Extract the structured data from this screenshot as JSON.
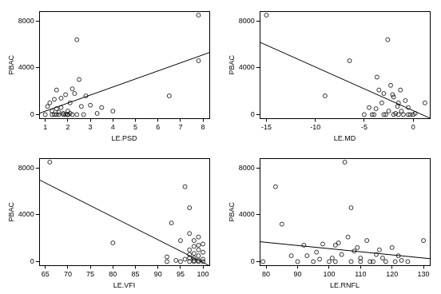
{
  "chart_data": [
    {
      "type": "scatter",
      "x_label": "LE.PSD",
      "y_label": "PBAC",
      "color": "#000000",
      "marker": "circle",
      "grid": false,
      "x": [
        1.0,
        1.1,
        1.2,
        1.3,
        1.3,
        1.4,
        1.4,
        1.5,
        1.5,
        1.5,
        1.6,
        1.6,
        1.7,
        1.7,
        1.8,
        1.8,
        1.9,
        1.9,
        2.0,
        2.0,
        2.0,
        2.1,
        2.1,
        2.2,
        2.2,
        2.3,
        2.4,
        2.4,
        2.5,
        2.6,
        2.7,
        2.8,
        3.0,
        3.3,
        3.5,
        4.0,
        6.5,
        7.8,
        7.8
      ],
      "values": [
        0,
        700,
        1000,
        300,
        0,
        0,
        1300,
        500,
        2100,
        0,
        0,
        200,
        1400,
        600,
        0,
        100,
        1700,
        0,
        300,
        0,
        0,
        1000,
        100,
        2200,
        0,
        1800,
        6400,
        0,
        3000,
        700,
        0,
        1600,
        800,
        100,
        600,
        300,
        1600,
        8500,
        4600
      ],
      "fit_line": {
        "x": [
          0.72,
          8.28
        ],
        "values": [
          100,
          5300
        ]
      },
      "xlim": [
        0.72,
        8.28
      ],
      "ylim": [
        -340,
        8840
      ],
      "xticks": [
        1,
        2,
        3,
        4,
        5,
        6,
        7,
        8
      ],
      "yticks": [
        0,
        4000,
        8000
      ]
    },
    {
      "type": "scatter",
      "x_label": "LE.MD",
      "y_label": "PBAC",
      "color": "#000000",
      "marker": "circle",
      "grid": false,
      "x": [
        -15,
        -9,
        -6.5,
        -5,
        -4.5,
        -4.2,
        -4,
        -3.8,
        -3.7,
        -3.5,
        -3.2,
        -3,
        -3,
        -2.8,
        -2.6,
        -2.5,
        -2.3,
        -2.1,
        -2,
        -2,
        -1.8,
        -1.6,
        -1.5,
        -1.5,
        -1.3,
        -1.2,
        -1,
        -0.8,
        -0.5,
        -0.5,
        -0.3,
        0,
        0.2,
        1.2
      ],
      "values": [
        8500,
        1600,
        4600,
        0,
        600,
        0,
        0,
        500,
        3200,
        2100,
        1000,
        1800,
        0,
        0,
        6400,
        300,
        2500,
        1700,
        1500,
        0,
        100,
        700,
        1000,
        0,
        2100,
        300,
        0,
        1200,
        600,
        0,
        0,
        0,
        100,
        1000
      ],
      "fit_line": {
        "x": [
          -15.7,
          1.7
        ],
        "values": [
          6200,
          -300
        ]
      },
      "xlim": [
        -15.7,
        1.7
      ],
      "ylim": [
        -340,
        8840
      ],
      "xticks": [
        -15,
        -10,
        -5,
        0
      ],
      "yticks": [
        0,
        4000,
        8000
      ]
    },
    {
      "type": "scatter",
      "x_label": "LE.VFI",
      "y_label": "PBAC",
      "color": "#000000",
      "marker": "circle",
      "grid": false,
      "x": [
        66,
        80,
        92,
        92,
        93,
        94,
        95,
        95,
        96,
        97,
        96,
        97,
        97,
        97,
        97,
        97,
        98,
        98,
        98,
        98,
        98,
        98,
        99,
        99,
        99,
        99,
        99,
        99,
        100,
        100,
        100,
        100
      ],
      "values": [
        8500,
        1600,
        400,
        0,
        3300,
        100,
        0,
        1800,
        6400,
        4600,
        200,
        2400,
        1000,
        0,
        300,
        600,
        1800,
        700,
        0,
        1300,
        100,
        300,
        2100,
        0,
        1000,
        500,
        1400,
        100,
        0,
        800,
        1500,
        200
      ],
      "fit_line": {
        "x": [
          63.6,
          101.4
        ],
        "values": [
          7000,
          -350
        ]
      },
      "xlim": [
        63.6,
        101.4
      ],
      "ylim": [
        -340,
        8840
      ],
      "xticks": [
        65,
        70,
        75,
        80,
        85,
        90,
        95,
        100
      ],
      "yticks": [
        0,
        4000,
        8000
      ]
    },
    {
      "type": "scatter",
      "x_label": "LE.RNFL",
      "y_label": "PBAC",
      "color": "#000000",
      "marker": "circle",
      "grid": false,
      "x": [
        79,
        83,
        85,
        88,
        90,
        92,
        93,
        95,
        96,
        97,
        98,
        100,
        101,
        102,
        102,
        103,
        104,
        105,
        106,
        107,
        107,
        108,
        109,
        110,
        110,
        112,
        113,
        114,
        115,
        116,
        117,
        118,
        120,
        121,
        122,
        123,
        125,
        130
      ],
      "values": [
        0,
        6400,
        3200,
        500,
        0,
        1400,
        500,
        0,
        800,
        200,
        1500,
        0,
        300,
        1400,
        0,
        1600,
        600,
        8500,
        2100,
        4600,
        0,
        900,
        1200,
        300,
        0,
        1800,
        0,
        0,
        600,
        1000,
        300,
        0,
        1200,
        0,
        500,
        100,
        0,
        1800
      ],
      "fit_line": {
        "x": [
          77.9,
          132
        ],
        "values": [
          1700,
          250
        ]
      },
      "xlim": [
        77.9,
        132
      ],
      "ylim": [
        -340,
        8840
      ],
      "xticks": [
        80,
        90,
        100,
        110,
        120,
        130
      ],
      "yticks": [
        0,
        4000,
        8000
      ]
    }
  ]
}
